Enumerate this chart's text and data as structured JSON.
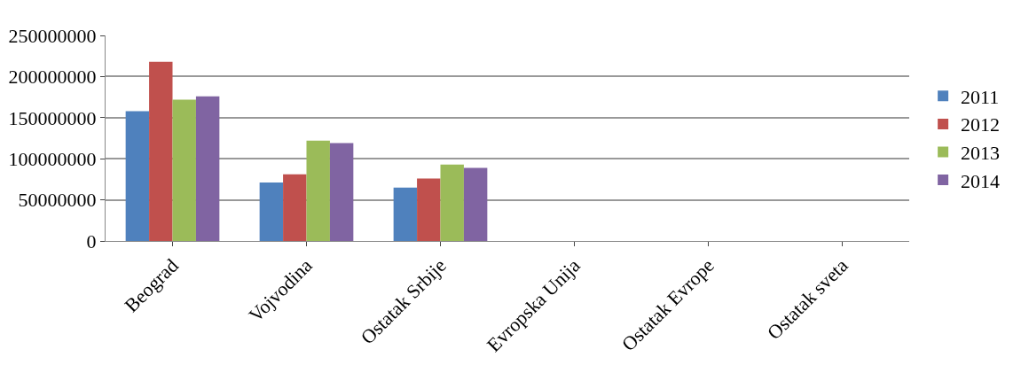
{
  "chart_data": {
    "type": "bar",
    "categories": [
      "Beograd",
      "Vojvodina",
      "Ostatak Srbije",
      "Evropska Unija",
      "Ostatak Evrope",
      "Ostatak sveta"
    ],
    "series": [
      {
        "name": "2011",
        "color": "#4f81bd",
        "values": [
          158000000,
          71000000,
          65000000,
          0,
          0,
          0
        ]
      },
      {
        "name": "2012",
        "color": "#c0504d",
        "values": [
          218000000,
          81000000,
          76000000,
          0,
          0,
          0
        ]
      },
      {
        "name": "2013",
        "color": "#9bbb59",
        "values": [
          172000000,
          122000000,
          93000000,
          0,
          0,
          0
        ]
      },
      {
        "name": "2014",
        "color": "#8064a2",
        "values": [
          176000000,
          119000000,
          89000000,
          0,
          0,
          0
        ]
      }
    ],
    "ylim": [
      0,
      250000000
    ],
    "yticks": [
      0,
      50000000,
      100000000,
      150000000,
      200000000,
      250000000
    ],
    "grid": "y",
    "legend": "right"
  }
}
